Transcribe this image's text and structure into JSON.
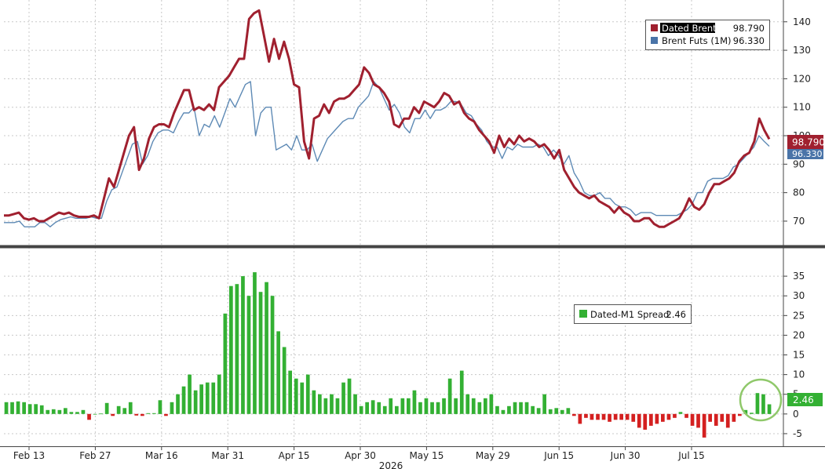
{
  "chart_data": [
    {
      "type": "line",
      "title": "",
      "ylim": [
        62,
        146
      ],
      "yticks": [
        70,
        80,
        90,
        100,
        110,
        120,
        130,
        140
      ],
      "y_axis_side": "right",
      "grid": true,
      "legend_position": "top-right",
      "series": [
        {
          "name": "Dated Brent",
          "last_value": "98.790",
          "color": "#a0202f",
          "values": [
            72,
            72,
            72.5,
            73,
            71,
            70.5,
            71,
            70,
            70,
            71,
            72,
            73,
            72.5,
            73,
            72,
            71.5,
            71.5,
            71.5,
            72,
            71,
            78,
            85,
            82,
            88,
            94,
            100,
            103,
            88,
            92,
            99,
            103,
            104,
            104,
            103,
            108,
            112,
            116,
            116,
            109,
            110,
            109,
            111,
            109,
            117,
            119,
            121,
            124,
            127,
            127,
            141,
            143,
            144,
            135,
            126,
            134,
            127,
            133,
            127,
            118,
            117,
            98,
            92,
            106,
            107,
            111,
            108,
            112,
            113,
            113,
            114,
            116,
            118,
            124,
            122,
            118,
            117,
            115,
            112,
            104,
            103,
            106,
            106,
            110,
            108,
            112,
            111,
            110,
            112,
            115,
            114,
            111,
            112,
            108,
            106,
            105,
            102,
            100,
            98,
            94,
            100,
            96,
            99,
            97,
            100,
            98,
            99,
            98,
            96,
            97,
            95,
            92,
            95,
            88,
            85,
            82,
            80,
            79,
            78,
            79,
            77,
            76,
            75,
            73,
            75,
            73,
            72,
            70,
            70,
            71,
            71,
            69,
            68,
            68,
            69,
            70,
            71,
            74,
            78,
            75,
            74,
            76,
            80,
            83,
            83,
            84,
            85,
            87,
            91,
            93,
            94,
            98,
            106,
            102,
            98.8
          ]
        },
        {
          "name": "Brent Futs (1M)",
          "last_value": "96.330",
          "color": "#5e8ab5",
          "values": [
            69.5,
            69.5,
            69.5,
            70,
            68,
            68,
            68,
            69.5,
            69.5,
            68,
            69.5,
            70.5,
            71,
            71.5,
            71,
            71,
            71,
            71.5,
            71,
            71,
            77,
            81,
            82,
            87,
            92,
            97,
            98,
            90,
            93,
            98,
            101,
            102,
            102,
            101,
            105,
            108,
            108,
            110,
            100,
            104,
            103,
            107,
            103,
            108,
            113,
            110,
            114,
            118,
            119,
            100,
            108,
            110,
            110,
            95,
            96,
            97,
            95,
            100,
            95,
            95,
            97,
            91,
            95,
            99,
            101,
            103,
            105,
            106,
            106,
            110,
            112,
            114,
            119,
            117,
            113,
            109,
            111,
            108,
            103,
            101,
            106,
            106,
            109,
            106,
            109,
            109,
            110,
            112,
            112,
            111,
            108,
            107,
            104,
            102,
            98,
            96,
            96,
            92,
            96,
            95,
            97,
            96,
            96,
            96,
            97,
            96,
            93,
            95,
            93,
            90,
            93,
            87,
            84,
            80,
            79,
            79,
            80,
            78,
            78,
            76,
            75,
            75,
            74,
            72,
            73,
            73,
            73,
            72,
            72,
            72,
            72,
            72,
            73,
            74,
            76,
            80,
            80,
            84,
            85,
            85,
            85,
            86,
            89,
            90,
            92,
            94,
            96,
            100,
            98,
            96.3
          ]
        }
      ]
    },
    {
      "type": "bar",
      "title": "",
      "ylim": [
        -8,
        41
      ],
      "yticks": [
        -5,
        0,
        5,
        10,
        15,
        20,
        25,
        30,
        35
      ],
      "y_axis_side": "right",
      "grid": true,
      "legend_position": "center-right",
      "series": [
        {
          "name": "Dated-M1 Spread",
          "last_value": "2.46",
          "positive_color": "#33b033",
          "negative_color": "#d42020",
          "values": [
            3,
            3,
            3.2,
            3,
            2.5,
            2.5,
            2.2,
            1,
            1.2,
            1,
            1.5,
            0.5,
            0.5,
            1,
            -1.5,
            0,
            0.1,
            2.8,
            -0.5,
            2,
            1.5,
            3,
            -0.4,
            -0.5,
            0.2,
            0.2,
            3.5,
            -0.5,
            3,
            5,
            7,
            10,
            6,
            7.5,
            8,
            8,
            10,
            25.5,
            32.5,
            33,
            35,
            30,
            36,
            31,
            33.5,
            30,
            21,
            17,
            11,
            9,
            8,
            10,
            6,
            5,
            4,
            5,
            4,
            8,
            9,
            5,
            2,
            3,
            3.5,
            3,
            2,
            4,
            2,
            4,
            4,
            6,
            3,
            4,
            3,
            3,
            4,
            9,
            4,
            11,
            5,
            4,
            3,
            4,
            5,
            2,
            1,
            2,
            3,
            3,
            3,
            2,
            1.5,
            5,
            1.2,
            1.5,
            1,
            1.5,
            -0.5,
            -2.5,
            -1,
            -1.5,
            -1.5,
            -1.5,
            -2,
            -1.5,
            -1.5,
            -1.5,
            -2,
            -3.5,
            -4,
            -3,
            -2.5,
            -2,
            -1.5,
            -1,
            0.5,
            -1,
            -3,
            -3.5,
            -6,
            -2,
            -3,
            -2,
            -3.5,
            -2,
            -0.5,
            1,
            0.3,
            5.3,
            5,
            2.46
          ]
        }
      ],
      "highlight": "circle-around-latest-bars"
    }
  ],
  "x_axis": {
    "tick_labels": [
      "Feb 13",
      "Feb 27",
      "Mar 16",
      "Mar 31",
      "Apr 15",
      "Apr 30",
      "May 15",
      "May 29",
      "Jun 15",
      "Jun 30",
      "Jul 15"
    ],
    "year_label": "2026"
  },
  "labels": {
    "dated_brent_tag": "98.790",
    "brent_futs_tag": "96.330",
    "spread_tag": "2.46"
  },
  "colors": {
    "axis_rule": "#444444",
    "grid": "#c8c8c8"
  }
}
